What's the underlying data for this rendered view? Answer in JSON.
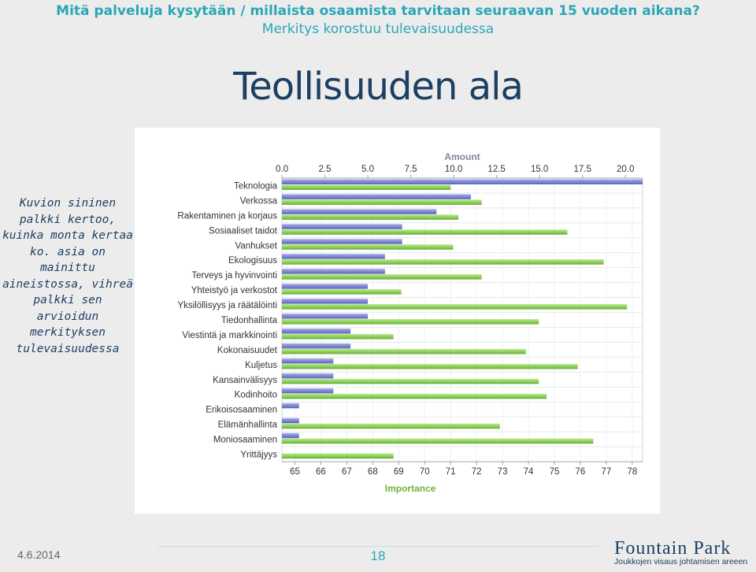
{
  "header": {
    "line1": "Mitä palveluja kysytään / millaista osaamista tarvitaan seuraavan 15 vuoden aikana?",
    "line2": "Merkitys korostuu tulevaisuudessa"
  },
  "slide_title": "Teollisuuden ala",
  "side_note": "Kuvion sininen palkki kertoo, kuinka monta kertaa ko. asia on mainittu aineistossa, vihreä palkki sen arvioidun merkityksen tulevaisuudessa",
  "footer": {
    "date": "4.6.2014",
    "page": "18",
    "logo_main": "Fountain Park",
    "logo_sub": "Joukkojen visaus johtamisen areeen"
  },
  "colors": {
    "amount_bar": "#7f88d0",
    "importance_bar": "#8fd15c",
    "header_text": "#2aa7b5",
    "title_text": "#1d3f63"
  },
  "chart_data": {
    "type": "bar",
    "orientation": "horizontal",
    "categories": [
      "Teknologia",
      "Verkossa",
      "Rakentaminen ja korjaus",
      "Sosiaaliset taidot",
      "Vanhukset",
      "Ekologisuus",
      "Terveys ja hyvinvointi",
      "Yhteistyö ja verkostot",
      "Yksilöllisyys ja räätälöinti",
      "Tiedonhallinta",
      "Viestintä ja markkinointi",
      "Kokonaisuudet",
      "Kuljetus",
      "Kansainvälisyys",
      "Kodinhoito",
      "Erikoisosaaminen",
      "Elämänhallinta",
      "Moniosaaminen",
      "Yrittäjyys"
    ],
    "series": [
      {
        "name": "Amount",
        "axis": "top",
        "values": [
          21,
          11,
          9,
          7,
          7,
          6,
          6,
          5,
          5,
          5,
          4,
          4,
          3,
          3,
          3,
          1,
          1,
          1,
          0
        ]
      },
      {
        "name": "Importance",
        "axis": "bottom",
        "values": [
          71,
          72.2,
          71.3,
          75.5,
          71.1,
          76.9,
          72.2,
          69.1,
          77.8,
          74.4,
          68.8,
          73.9,
          75.9,
          74.4,
          74.7,
          null,
          72.9,
          76.5,
          68.8
        ]
      }
    ],
    "top_axis": {
      "label": "Amount",
      "range": [
        0,
        21
      ],
      "ticks": [
        "0.0",
        "2.5",
        "5.0",
        "7.5",
        "10.0",
        "12.5",
        "15.0",
        "17.5",
        "20.0"
      ]
    },
    "bottom_axis": {
      "label": "Importance",
      "range": [
        64.5,
        78.4
      ],
      "ticks": [
        "65",
        "66",
        "67",
        "68",
        "69",
        "70",
        "71",
        "72",
        "73",
        "74",
        "75",
        "76",
        "77",
        "78"
      ]
    },
    "grid": true
  }
}
